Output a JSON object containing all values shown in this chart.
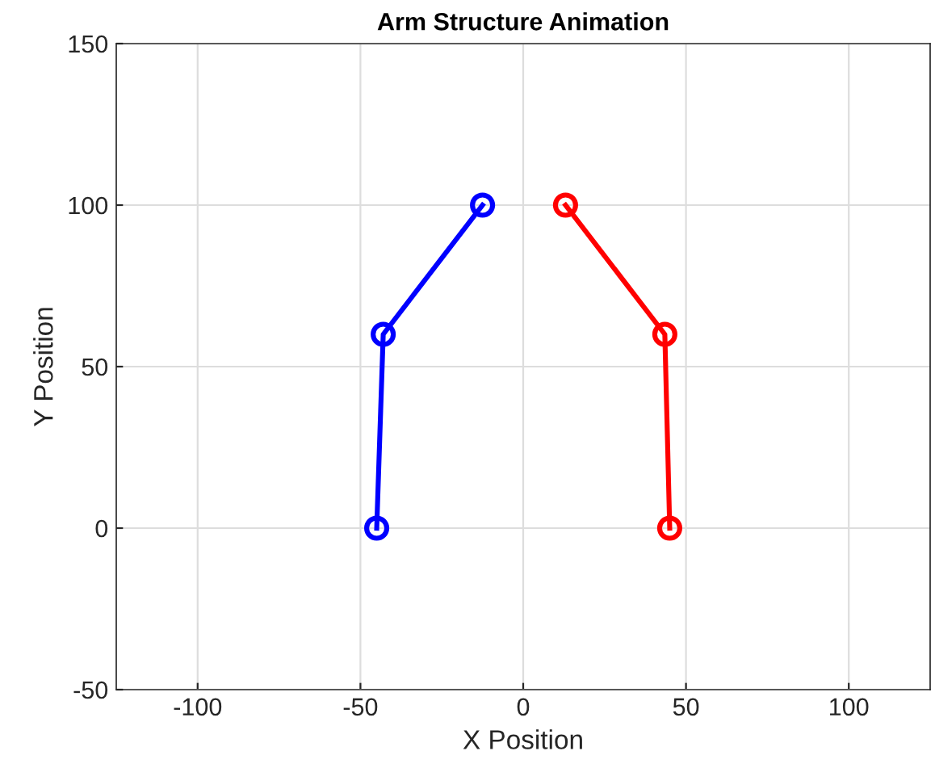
{
  "chart_data": {
    "type": "line",
    "title": "Arm Structure Animation",
    "xlabel": "X Position",
    "ylabel": "Y Position",
    "series": [
      {
        "color": "#0000ff",
        "x": [
          -45,
          -43,
          -12.5
        ],
        "values": [
          0,
          60,
          100
        ]
      },
      {
        "color": "#ff0000",
        "x": [
          45,
          43.5,
          13
        ],
        "values": [
          0,
          60,
          100
        ]
      }
    ],
    "xlim": [
      -125,
      125
    ],
    "ylim": [
      -50,
      150
    ],
    "xticks": [
      -100,
      -50,
      0,
      50,
      100
    ],
    "yticks": [
      -50,
      0,
      50,
      100,
      150
    ],
    "grid": true,
    "marker": "circle",
    "line_style": "solid"
  }
}
